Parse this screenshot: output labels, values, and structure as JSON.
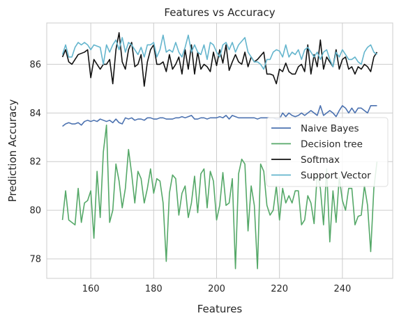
{
  "chart_data": {
    "type": "line",
    "title": "Features vs Accuracy",
    "xlabel": "Features",
    "ylabel": "Prediction Accuracy",
    "xlim": [
      146,
      256
    ],
    "ylim": [
      77.2,
      87.7
    ],
    "xticks": [
      160,
      180,
      200,
      220,
      240
    ],
    "yticks": [
      78,
      80,
      82,
      84,
      86
    ],
    "grid": true,
    "legend_position": "center-right",
    "x_start": 151,
    "x_step": 1,
    "series": [
      {
        "name": "Naive Bayes",
        "color": "#4c72b0",
        "values": [
          83.45,
          83.55,
          83.6,
          83.55,
          83.55,
          83.6,
          83.5,
          83.65,
          83.7,
          83.65,
          83.7,
          83.65,
          83.75,
          83.7,
          83.65,
          83.7,
          83.6,
          83.75,
          83.6,
          83.55,
          83.8,
          83.75,
          83.8,
          83.7,
          83.75,
          83.75,
          83.7,
          83.8,
          83.8,
          83.75,
          83.75,
          83.8,
          83.8,
          83.75,
          83.75,
          83.75,
          83.8,
          83.8,
          83.85,
          83.8,
          83.85,
          83.9,
          83.75,
          83.75,
          83.8,
          83.8,
          83.75,
          83.8,
          83.8,
          83.8,
          83.85,
          83.8,
          83.9,
          83.75,
          83.9,
          83.85,
          83.8,
          83.8,
          83.8,
          83.8,
          83.8,
          83.8,
          83.75,
          83.8,
          83.8,
          83.8,
          83.8,
          83.8,
          83.75,
          83.75,
          84.0,
          83.85,
          84.0,
          83.9,
          83.85,
          83.9,
          84.0,
          83.9,
          84.0,
          84.1,
          84.0,
          83.9,
          84.3,
          83.9,
          84.0,
          84.1,
          84.0,
          83.85,
          84.1,
          84.3,
          84.2,
          84.0,
          84.2,
          84.0,
          84.2,
          84.2,
          84.1,
          84.0,
          84.3,
          84.3,
          84.3
        ]
      },
      {
        "name": "Decision tree",
        "color": "#55a868",
        "values": [
          79.6,
          80.8,
          79.6,
          79.5,
          79.4,
          80.9,
          79.5,
          80.3,
          80.4,
          80.8,
          78.85,
          81.6,
          79.7,
          82.4,
          83.5,
          79.5,
          80.0,
          81.9,
          81.2,
          80.1,
          80.9,
          82.5,
          81.5,
          80.3,
          81.6,
          81.3,
          80.3,
          80.9,
          81.7,
          80.7,
          81.3,
          81.2,
          80.3,
          77.9,
          80.7,
          81.45,
          81.3,
          79.8,
          80.7,
          81.0,
          79.7,
          80.3,
          81.4,
          79.9,
          81.5,
          81.7,
          80.1,
          81.6,
          81.2,
          79.6,
          80.2,
          81.55,
          80.2,
          80.3,
          81.3,
          77.6,
          81.5,
          82.1,
          81.9,
          79.15,
          81.0,
          80.2,
          77.6,
          81.9,
          81.6,
          80.2,
          79.8,
          80.0,
          81.0,
          79.6,
          80.9,
          80.3,
          80.6,
          80.3,
          80.8,
          80.8,
          79.4,
          79.6,
          80.6,
          80.3,
          79.45,
          81.5,
          80.9,
          79.4,
          81.7,
          78.7,
          80.8,
          79.5,
          81.35,
          80.4,
          80.0,
          80.9,
          80.9,
          79.4,
          79.75,
          79.8,
          81.0,
          80.2,
          78.3,
          80.9,
          82.0
        ]
      },
      {
        "name": "Softmax",
        "color": "#111111",
        "values": [
          86.3,
          86.6,
          86.1,
          86.0,
          86.2,
          86.4,
          86.45,
          86.5,
          86.6,
          85.45,
          86.2,
          86.0,
          85.8,
          86.0,
          86.0,
          86.2,
          85.2,
          86.6,
          87.3,
          86.1,
          85.8,
          86.6,
          86.9,
          85.9,
          86.0,
          86.4,
          85.1,
          86.1,
          86.6,
          86.8,
          86.0,
          86.0,
          86.1,
          85.7,
          86.4,
          85.8,
          86.0,
          86.3,
          85.6,
          86.6,
          85.8,
          86.8,
          85.6,
          86.5,
          85.8,
          86.0,
          85.9,
          85.7,
          86.5,
          85.95,
          86.6,
          86.05,
          86.8,
          85.75,
          86.1,
          86.4,
          86.1,
          86.0,
          86.5,
          85.9,
          86.3,
          86.1,
          86.2,
          86.35,
          86.5,
          85.6,
          85.6,
          85.55,
          85.2,
          85.8,
          85.7,
          86.05,
          85.7,
          85.6,
          85.6,
          85.9,
          86.0,
          85.7,
          86.8,
          85.6,
          86.4,
          85.9,
          87.0,
          85.8,
          86.3,
          86.1,
          85.9,
          86.6,
          85.8,
          86.2,
          86.3,
          85.8,
          85.9,
          85.6,
          85.9,
          85.8,
          86.0,
          85.9,
          85.7,
          86.3,
          86.5
        ]
      },
      {
        "name": "Support Vector",
        "color": "#64b5cd",
        "values": [
          86.4,
          86.8,
          86.3,
          86.3,
          86.7,
          86.9,
          86.8,
          86.9,
          86.8,
          86.6,
          86.8,
          86.75,
          86.7,
          86.0,
          86.8,
          86.5,
          86.8,
          87.0,
          86.6,
          87.1,
          86.5,
          86.9,
          86.8,
          86.6,
          86.4,
          86.7,
          86.3,
          86.8,
          86.8,
          86.9,
          86.3,
          86.6,
          87.2,
          86.5,
          86.6,
          86.5,
          86.9,
          86.5,
          86.3,
          86.7,
          87.2,
          86.5,
          86.8,
          86.5,
          86.4,
          86.8,
          86.2,
          86.9,
          86.8,
          86.5,
          86.3,
          86.8,
          86.9,
          86.6,
          86.9,
          86.5,
          86.8,
          86.95,
          87.1,
          86.5,
          86.3,
          86.1,
          86.1,
          86.0,
          85.8,
          86.2,
          86.2,
          86.5,
          86.6,
          86.55,
          86.3,
          86.8,
          86.3,
          86.5,
          86.4,
          86.6,
          86.2,
          86.6,
          86.7,
          86.5,
          86.3,
          86.5,
          86.2,
          86.5,
          86.6,
          86.2,
          85.9,
          86.5,
          86.3,
          86.6,
          86.4,
          86.2,
          86.2,
          86.3,
          86.1,
          86.0,
          86.5,
          86.7,
          86.8,
          86.5,
          86.4
        ]
      }
    ]
  }
}
